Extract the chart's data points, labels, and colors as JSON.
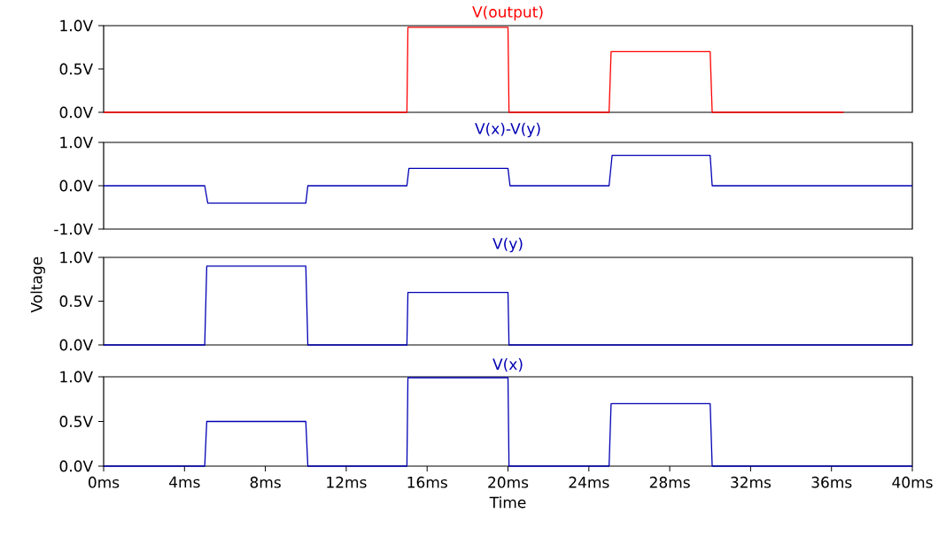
{
  "chart_data": [
    {
      "type": "line",
      "title": "V(output)",
      "xlim": [
        0,
        40
      ],
      "ylim": [
        0,
        1
      ],
      "yticks": [
        {
          "value": 0,
          "label": "0.0V"
        },
        {
          "value": 0.5,
          "label": "0.5V"
        },
        {
          "value": 1,
          "label": "1.0V"
        }
      ],
      "tick_labels": "y",
      "series": [
        {
          "color": "#ff0000",
          "x": [
            0,
            15,
            15.05,
            20,
            20.05,
            25,
            25.1,
            30,
            30.1,
            36.6
          ],
          "values": [
            0,
            0,
            0.98,
            0.98,
            0,
            0,
            0.7,
            0.7,
            0,
            0
          ]
        }
      ]
    },
    {
      "type": "line",
      "title": "V(x)-V(y)",
      "xlim": [
        0,
        40
      ],
      "ylim": [
        -1,
        1
      ],
      "yticks": [
        {
          "value": -1,
          "label": "-1.0V"
        },
        {
          "value": 0,
          "label": "0.0V"
        },
        {
          "value": 1,
          "label": "1.0V"
        }
      ],
      "tick_labels": "y",
      "series": [
        {
          "color": "#0000b4",
          "x": [
            0,
            5,
            5.15,
            10,
            10.1,
            15,
            15.1,
            20,
            20.1,
            25,
            25.15,
            30,
            30.1,
            40
          ],
          "values": [
            0,
            0,
            -0.4,
            -0.4,
            0,
            0,
            0.4,
            0.4,
            0,
            0,
            0.7,
            0.7,
            0,
            0
          ]
        }
      ]
    },
    {
      "type": "line",
      "title": "V(y)",
      "ylabel": "Voltage",
      "xlim": [
        0,
        40
      ],
      "ylim": [
        0,
        1
      ],
      "yticks": [
        {
          "value": 0,
          "label": "0.0V"
        },
        {
          "value": 0.5,
          "label": "0.5V"
        },
        {
          "value": 1,
          "label": "1.0V"
        }
      ],
      "tick_labels": "y",
      "series": [
        {
          "color": "#0000b4",
          "x": [
            0,
            5,
            5.1,
            10,
            10.1,
            15,
            15.05,
            20,
            20.05,
            40
          ],
          "values": [
            0,
            0,
            0.9,
            0.9,
            0,
            0,
            0.6,
            0.6,
            0,
            0
          ]
        }
      ]
    },
    {
      "type": "line",
      "title": "V(x)",
      "xlabel": "Time",
      "xlim": [
        0,
        40
      ],
      "ylim": [
        0,
        1
      ],
      "yticks": [
        {
          "value": 0,
          "label": "0.0V"
        },
        {
          "value": 0.5,
          "label": "0.5V"
        },
        {
          "value": 1,
          "label": "1.0V"
        }
      ],
      "xticks": [
        {
          "value": 0,
          "label": "0ms"
        },
        {
          "value": 4,
          "label": "4ms"
        },
        {
          "value": 8,
          "label": "8ms"
        },
        {
          "value": 12,
          "label": "12ms"
        },
        {
          "value": 16,
          "label": "16ms"
        },
        {
          "value": 20,
          "label": "20ms"
        },
        {
          "value": 24,
          "label": "24ms"
        },
        {
          "value": 28,
          "label": "28ms"
        },
        {
          "value": 32,
          "label": "32ms"
        },
        {
          "value": 36,
          "label": "36ms"
        },
        {
          "value": 40,
          "label": "40ms"
        }
      ],
      "series": [
        {
          "color": "#0000b4",
          "x": [
            0,
            5,
            5.1,
            10,
            10.1,
            15,
            15.05,
            20,
            20.05,
            25,
            25.1,
            30,
            30.1,
            40
          ],
          "values": [
            0,
            0,
            0.5,
            0.5,
            0,
            0,
            0.99,
            0.99,
            0,
            0,
            0.7,
            0.7,
            0,
            0
          ]
        }
      ]
    }
  ]
}
